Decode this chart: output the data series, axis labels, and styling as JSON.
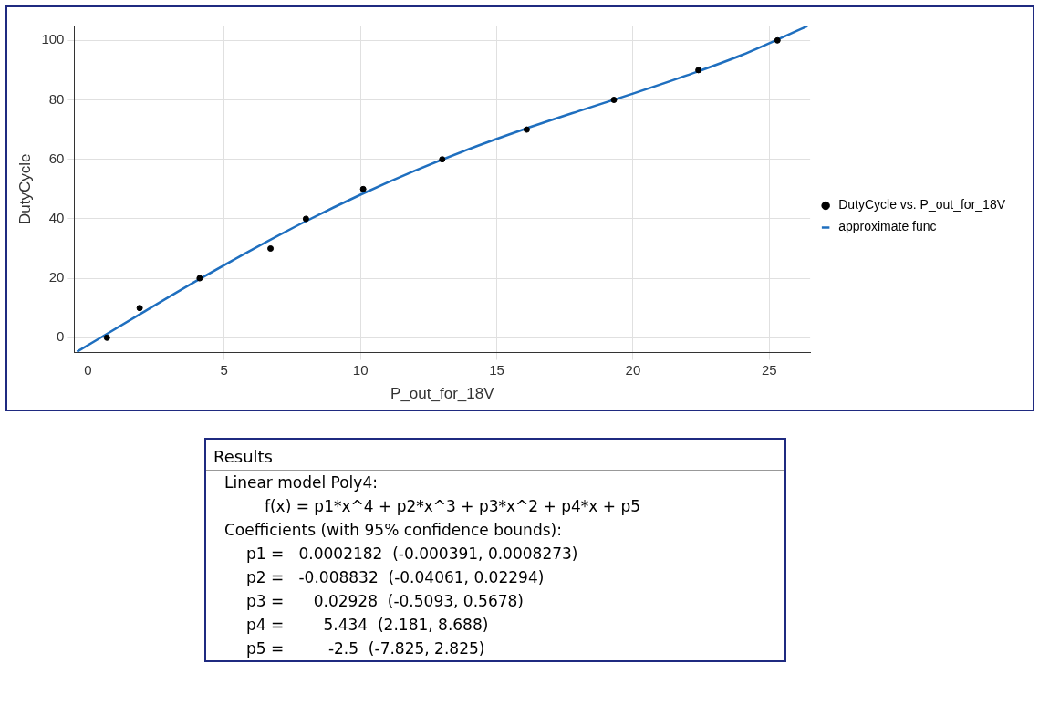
{
  "chart_data": {
    "type": "scatter",
    "xlabel": "P_out_for_18V",
    "ylabel": "DutyCycle",
    "xlim": [
      -0.5,
      26.5
    ],
    "ylim": [
      -5,
      105
    ],
    "xticks": [
      0,
      5,
      10,
      15,
      20,
      25
    ],
    "yticks": [
      0,
      20,
      40,
      60,
      80,
      100
    ],
    "grid": true,
    "legend": "right",
    "series": [
      {
        "name": "DutyCycle vs. P_out_for_18V",
        "marker": "circle",
        "color": "#000000",
        "x": [
          0.7,
          1.9,
          4.1,
          6.7,
          8.0,
          10.1,
          13.0,
          16.1,
          19.3,
          22.4,
          25.3
        ],
        "values": [
          0,
          10,
          20,
          30,
          40,
          50,
          60,
          70,
          80,
          90,
          100
        ]
      },
      {
        "name": "approximate func",
        "type": "line",
        "marker": "none",
        "color": "#1f6fbf",
        "x": [
          -0.4,
          2,
          4,
          6,
          8,
          10,
          12,
          14,
          16,
          18,
          20,
          22,
          24,
          26.4
        ],
        "values": [
          -4.7,
          8.4,
          19.2,
          29.5,
          39.2,
          48.1,
          56.2,
          63.5,
          70.1,
          76.2,
          82.1,
          88.3,
          95.1,
          104.8
        ]
      }
    ],
    "annotations": [
      "Results",
      "Linear model Poly4:",
      "f(x) = p1*x^4 + p2*x^3 + p3*x^2 + p4*x + p5",
      "Coefficients (with 95% confidence bounds):",
      "p1 =   0.0002182  (-0.000391, 0.0008273)",
      "p2 =   -0.008832  (-0.04061, 0.02294)",
      "p3 =      0.02928  (-0.5093, 0.5678)",
      "p4 =        5.434  (2.181, 8.688)",
      "p5 =         -2.5  (-7.825, 2.825)"
    ]
  }
}
